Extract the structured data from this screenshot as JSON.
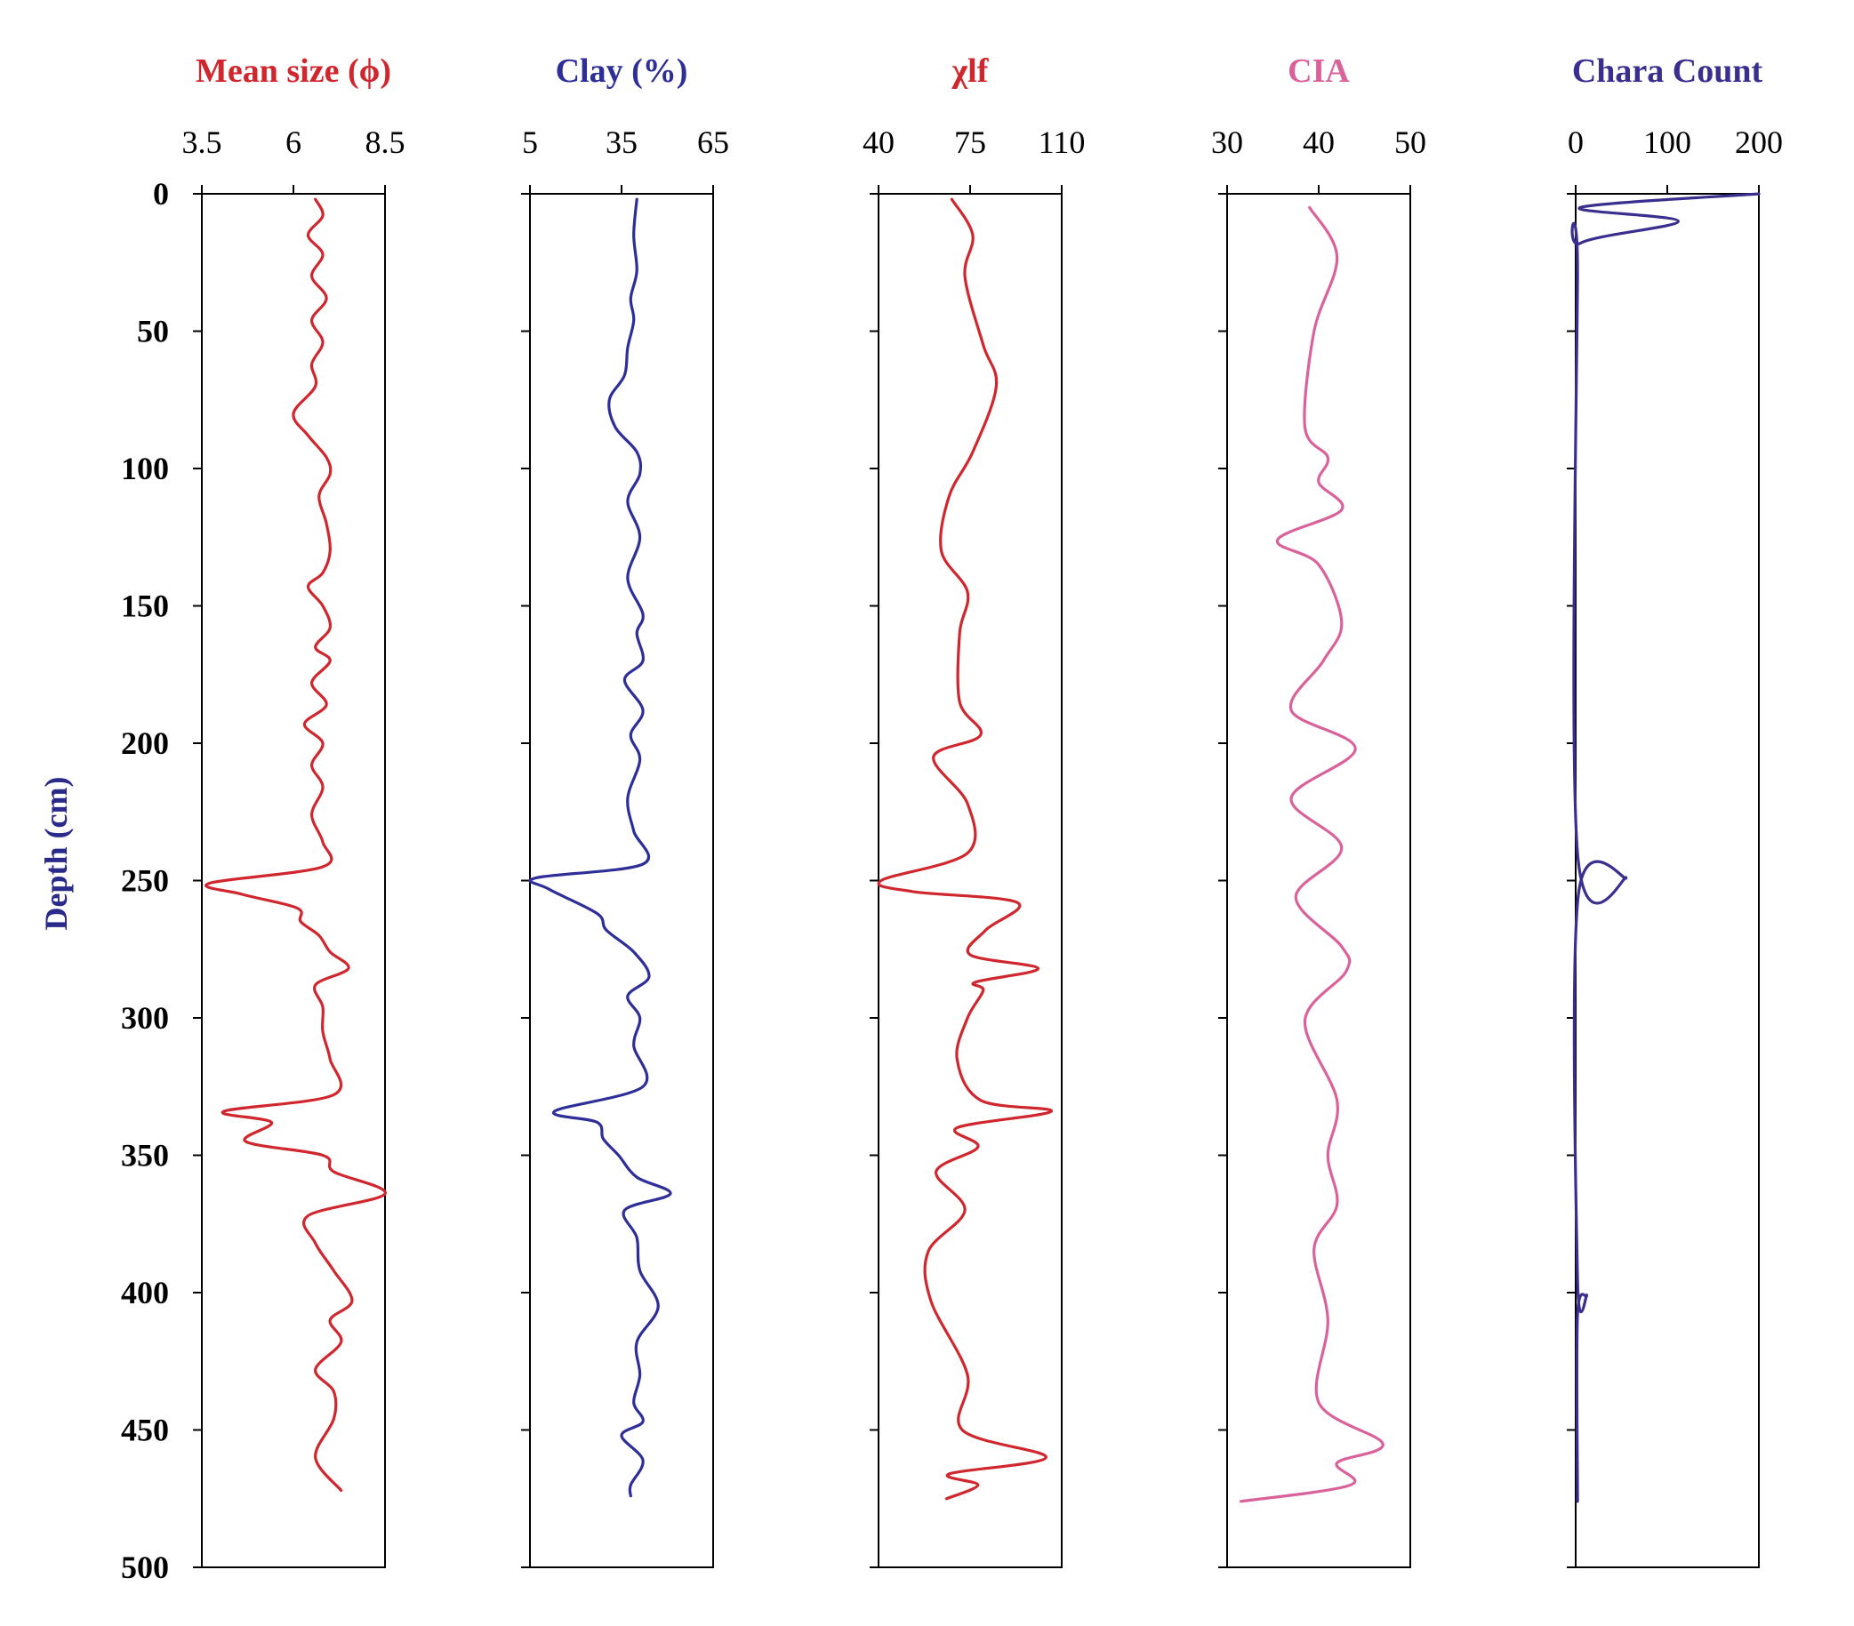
{
  "chart_data": {
    "type": "line",
    "orientation": "depth-profile",
    "y_axis": {
      "label": "Depth (cm)",
      "range": [
        0,
        500
      ],
      "ticks": [
        0,
        50,
        100,
        150,
        200,
        250,
        300,
        350,
        400,
        450,
        500
      ],
      "inverted": true,
      "color": "#2a2a8a"
    },
    "panels": [
      {
        "title": "Mean size (ϕ)",
        "color": "#d0262d",
        "xlim": [
          3.5,
          8.5
        ],
        "xticks": [
          3.5,
          6,
          8.5
        ],
        "xtick_labels": [
          "3.5",
          "6",
          "8.5"
        ],
        "points": [
          [
            6.6,
            2
          ],
          [
            6.8,
            8
          ],
          [
            6.4,
            15
          ],
          [
            6.8,
            22
          ],
          [
            6.5,
            30
          ],
          [
            6.9,
            38
          ],
          [
            6.5,
            46
          ],
          [
            6.8,
            54
          ],
          [
            6.5,
            62
          ],
          [
            6.6,
            70
          ],
          [
            6.0,
            80
          ],
          [
            6.4,
            88
          ],
          [
            6.9,
            96
          ],
          [
            7.0,
            102
          ],
          [
            6.7,
            110
          ],
          [
            6.9,
            120
          ],
          [
            7.0,
            130
          ],
          [
            6.8,
            138
          ],
          [
            6.4,
            143
          ],
          [
            6.8,
            150
          ],
          [
            7.0,
            158
          ],
          [
            6.6,
            165
          ],
          [
            7.0,
            170
          ],
          [
            6.5,
            178
          ],
          [
            6.9,
            186
          ],
          [
            6.3,
            193
          ],
          [
            6.8,
            200
          ],
          [
            6.5,
            208
          ],
          [
            6.8,
            216
          ],
          [
            6.5,
            226
          ],
          [
            6.8,
            236
          ],
          [
            6.8,
            245
          ],
          [
            3.7,
            251
          ],
          [
            4.6,
            255
          ],
          [
            6.1,
            260
          ],
          [
            6.2,
            265
          ],
          [
            6.7,
            270
          ],
          [
            7.0,
            276
          ],
          [
            7.5,
            282
          ],
          [
            6.6,
            288
          ],
          [
            6.8,
            296
          ],
          [
            6.8,
            305
          ],
          [
            7.0,
            315
          ],
          [
            7.1,
            328
          ],
          [
            4.1,
            334
          ],
          [
            5.4,
            338
          ],
          [
            4.7,
            345
          ],
          [
            6.8,
            350
          ],
          [
            7.1,
            356
          ],
          [
            8.5,
            364
          ],
          [
            6.4,
            372
          ],
          [
            6.6,
            382
          ],
          [
            7.1,
            392
          ],
          [
            7.6,
            403
          ],
          [
            7.0,
            410
          ],
          [
            7.3,
            418
          ],
          [
            6.6,
            428
          ],
          [
            7.1,
            436
          ],
          [
            7.1,
            446
          ],
          [
            6.6,
            460
          ],
          [
            7.3,
            472
          ]
        ]
      },
      {
        "title": "Clay  (%)",
        "color": "#2e2e99",
        "xlim": [
          5,
          65
        ],
        "xticks": [
          5,
          35,
          65
        ],
        "xtick_labels": [
          "5",
          "35",
          "65"
        ],
        "points": [
          [
            40,
            2
          ],
          [
            39,
            15
          ],
          [
            40,
            28
          ],
          [
            38,
            38
          ],
          [
            39,
            46
          ],
          [
            37,
            56
          ],
          [
            36,
            66
          ],
          [
            31,
            75
          ],
          [
            33,
            85
          ],
          [
            40,
            94
          ],
          [
            41,
            102
          ],
          [
            37,
            112
          ],
          [
            41,
            125
          ],
          [
            37,
            140
          ],
          [
            42,
            153
          ],
          [
            40,
            160
          ],
          [
            42,
            170
          ],
          [
            36,
            177
          ],
          [
            42,
            188
          ],
          [
            38,
            197
          ],
          [
            41,
            206
          ],
          [
            37,
            220
          ],
          [
            39,
            232
          ],
          [
            42,
            244
          ],
          [
            7,
            249
          ],
          [
            11,
            253
          ],
          [
            27,
            262
          ],
          [
            30,
            268
          ],
          [
            39,
            276
          ],
          [
            44,
            285
          ],
          [
            37,
            292
          ],
          [
            41,
            300
          ],
          [
            39,
            310
          ],
          [
            42,
            325
          ],
          [
            13,
            334
          ],
          [
            27,
            338
          ],
          [
            29,
            344
          ],
          [
            34,
            350
          ],
          [
            40,
            358
          ],
          [
            51,
            364
          ],
          [
            36,
            370
          ],
          [
            40,
            380
          ],
          [
            41,
            392
          ],
          [
            47,
            405
          ],
          [
            40,
            418
          ],
          [
            41,
            430
          ],
          [
            39,
            440
          ],
          [
            42,
            447
          ],
          [
            35,
            452
          ],
          [
            42,
            461
          ],
          [
            38,
            470
          ],
          [
            38,
            474
          ]
        ]
      },
      {
        "title": "χlf",
        "color": "#d0262d",
        "xlim": [
          40,
          110
        ],
        "xticks": [
          40,
          75,
          110
        ],
        "xtick_labels": [
          "40",
          "75",
          "110"
        ],
        "points": [
          [
            68,
            2
          ],
          [
            76,
            15
          ],
          [
            73,
            30
          ],
          [
            80,
            55
          ],
          [
            85,
            70
          ],
          [
            76,
            94
          ],
          [
            67,
            110
          ],
          [
            64,
            130
          ],
          [
            74,
            145
          ],
          [
            71,
            160
          ],
          [
            71,
            185
          ],
          [
            79,
            197
          ],
          [
            61,
            205
          ],
          [
            74,
            222
          ],
          [
            74,
            240
          ],
          [
            41,
            250
          ],
          [
            53,
            254
          ],
          [
            93,
            258
          ],
          [
            81,
            268
          ],
          [
            75,
            277
          ],
          [
            101,
            282
          ],
          [
            77,
            287
          ],
          [
            80,
            290
          ],
          [
            74,
            300
          ],
          [
            70,
            315
          ],
          [
            79,
            330
          ],
          [
            106,
            334
          ],
          [
            70,
            340
          ],
          [
            78,
            347
          ],
          [
            62,
            356
          ],
          [
            73,
            370
          ],
          [
            59,
            385
          ],
          [
            60,
            403
          ],
          [
            74,
            430
          ],
          [
            72,
            450
          ],
          [
            104,
            460
          ],
          [
            67,
            466
          ],
          [
            78,
            470
          ],
          [
            66,
            475
          ]
        ]
      },
      {
        "title": "CIA",
        "color": "#d9629b",
        "xlim": [
          30,
          50
        ],
        "xticks": [
          30,
          40,
          50
        ],
        "xtick_labels": [
          "30",
          "40",
          "50"
        ],
        "points": [
          [
            39,
            5
          ],
          [
            42,
            23
          ],
          [
            39.5,
            50
          ],
          [
            38.5,
            85
          ],
          [
            41,
            96
          ],
          [
            40,
            105
          ],
          [
            42.5,
            115
          ],
          [
            35.5,
            126
          ],
          [
            40,
            135
          ],
          [
            42.5,
            156
          ],
          [
            40.5,
            170
          ],
          [
            37,
            188
          ],
          [
            44,
            202
          ],
          [
            37,
            220
          ],
          [
            42.5,
            238
          ],
          [
            37.5,
            256
          ],
          [
            42.5,
            274
          ],
          [
            43,
            283
          ],
          [
            38.5,
            301
          ],
          [
            42,
            330
          ],
          [
            41,
            350
          ],
          [
            42,
            368
          ],
          [
            39.5,
            384
          ],
          [
            41,
            410
          ],
          [
            40,
            440
          ],
          [
            47,
            455
          ],
          [
            42,
            462
          ],
          [
            43.5,
            470
          ],
          [
            31.5,
            476
          ]
        ]
      },
      {
        "title": "Chara Count",
        "color": "#3a2f8f",
        "xlim": [
          0,
          200
        ],
        "xticks": [
          0,
          100,
          200
        ],
        "xtick_labels": [
          "0",
          "100",
          "200"
        ],
        "points": [
          [
            200,
            0
          ],
          [
            5,
            5
          ],
          [
            112,
            10
          ],
          [
            5,
            18
          ],
          [
            2,
            30
          ],
          [
            2,
            240
          ],
          [
            55,
            249
          ],
          [
            3,
            255
          ],
          [
            2,
            395
          ],
          [
            12,
            401
          ],
          [
            2,
            408
          ],
          [
            2,
            476
          ]
        ]
      }
    ]
  }
}
